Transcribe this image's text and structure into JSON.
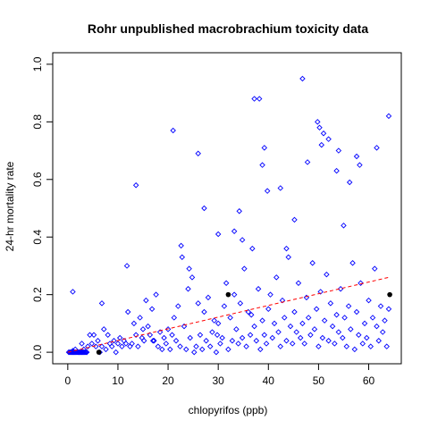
{
  "chart_data": {
    "type": "scatter",
    "title": "Rohr unpublished macrobrachium toxicity data",
    "xlabel": "chlopyrifos (ppb)",
    "ylabel": "24-hr mortality rate",
    "xlim": [
      -3,
      66.5
    ],
    "ylim": [
      -0.04,
      1.04
    ],
    "x_ticks": [
      "0",
      "10",
      "20",
      "30",
      "40",
      "50",
      "60"
    ],
    "y_ticks": [
      "0.0",
      "0.2",
      "0.4",
      "0.6",
      "0.8",
      "1.0"
    ],
    "grid": false,
    "legend": "none",
    "series": [
      {
        "marker": "open-diamond",
        "color": "#0000ff",
        "x": [
          0.2,
          0.4,
          0.6,
          0.8,
          1.0,
          1.2,
          1.4,
          1.6,
          1.8,
          2.0,
          2.2,
          2.4,
          2.6,
          2.8,
          3.0,
          3.2,
          3.4,
          3.6,
          3.8,
          1.0,
          1.5,
          2.2,
          2.8,
          3.2,
          4.0,
          4.4,
          4.8,
          5.2,
          5.6,
          6.0,
          6.4,
          6.8,
          7.2,
          7.6,
          8.0,
          8.4,
          8.8,
          9.2,
          9.6,
          10.0,
          10.4,
          10.8,
          11.2,
          11.6,
          12.0,
          12.4,
          12.8,
          13.2,
          13.6,
          14.0,
          14.4,
          14.8,
          15.2,
          15.6,
          16.0,
          16.4,
          16.8,
          17.2,
          17.6,
          18.0,
          18.4,
          18.8,
          19.2,
          19.6,
          20.0,
          20.4,
          20.8,
          21.2,
          21.6,
          22.0,
          22.4,
          22.8,
          23.2,
          23.6,
          24.0,
          24.4,
          24.8,
          25.2,
          25.6,
          26.0,
          26.4,
          26.8,
          27.2,
          27.6,
          28.0,
          28.4,
          28.8,
          29.2,
          29.6,
          30.0,
          30.4,
          30.8,
          31.2,
          31.6,
          32.0,
          32.4,
          32.8,
          33.2,
          33.6,
          34.0,
          34.4,
          34.8,
          35.2,
          35.6,
          36.0,
          36.4,
          36.8,
          37.2,
          37.6,
          38.0,
          38.4,
          38.8,
          39.2,
          39.6,
          40.0,
          40.4,
          40.8,
          41.2,
          41.6,
          42.0,
          42.4,
          42.8,
          43.2,
          43.6,
          44.0,
          44.4,
          44.8,
          45.2,
          45.6,
          46.0,
          46.4,
          46.8,
          47.2,
          47.6,
          48.0,
          48.4,
          48.8,
          49.2,
          49.6,
          50.0,
          50.4,
          50.8,
          51.2,
          51.6,
          52.0,
          52.4,
          52.8,
          53.2,
          53.6,
          54.0,
          54.4,
          54.8,
          55.2,
          55.6,
          56.0,
          56.4,
          56.8,
          57.2,
          57.6,
          58.0,
          58.4,
          58.8,
          59.2,
          59.6,
          60.0,
          60.4,
          60.8,
          61.2,
          61.6,
          62.0,
          62.4,
          62.8,
          63.2,
          63.6,
          64.0,
          11.8,
          13.6,
          21.0,
          26.0,
          37.2,
          38.2,
          46.8,
          47.8,
          49.8,
          50.6,
          54.0,
          58.2,
          61.6,
          64.0,
          39.2,
          39.8,
          42.4,
          45.2,
          52.0,
          53.6,
          55.0,
          56.2,
          57.6,
          22.6,
          24.2,
          27.2,
          30.0,
          33.2,
          34.2,
          34.8,
          38.8,
          43.6,
          1.0,
          6.8,
          15.0,
          17.0,
          29.8,
          36.6,
          50.2,
          51.0
        ],
        "y": [
          0.0,
          0.0,
          0.0,
          0.0,
          0.0,
          0.0,
          0.0,
          0.0,
          0.0,
          0.0,
          0.0,
          0.0,
          0.0,
          0.0,
          0.0,
          0.0,
          0.0,
          0.0,
          0.0,
          0.005,
          0.01,
          0.0,
          0.03,
          0.01,
          0.02,
          0.06,
          0.03,
          0.06,
          0.02,
          0.04,
          0.0,
          0.02,
          0.08,
          0.01,
          0.06,
          0.03,
          0.02,
          0.04,
          0.0,
          0.03,
          0.05,
          0.02,
          0.04,
          0.03,
          0.14,
          0.02,
          0.03,
          0.1,
          0.06,
          0.02,
          0.12,
          0.05,
          0.04,
          0.18,
          0.09,
          0.06,
          0.15,
          0.04,
          0.2,
          0.02,
          0.07,
          0.01,
          0.05,
          0.03,
          0.08,
          0.01,
          0.06,
          0.12,
          0.04,
          0.16,
          0.02,
          0.33,
          0.09,
          0.01,
          0.22,
          0.05,
          0.26,
          0.0,
          0.02,
          0.17,
          0.06,
          0.01,
          0.14,
          0.04,
          0.19,
          0.02,
          0.07,
          0.11,
          0.0,
          0.1,
          0.03,
          0.05,
          0.16,
          0.24,
          0.01,
          0.12,
          0.04,
          0.2,
          0.08,
          0.03,
          0.17,
          0.05,
          0.29,
          0.02,
          0.14,
          0.06,
          0.36,
          0.09,
          0.04,
          0.22,
          0.01,
          0.11,
          0.06,
          0.03,
          0.15,
          0.2,
          0.05,
          0.1,
          0.26,
          0.07,
          0.02,
          0.18,
          0.12,
          0.04,
          0.33,
          0.09,
          0.03,
          0.14,
          0.07,
          0.24,
          0.05,
          0.1,
          0.03,
          0.19,
          0.12,
          0.06,
          0.31,
          0.08,
          0.15,
          0.02,
          0.21,
          0.05,
          0.11,
          0.27,
          0.04,
          0.17,
          0.09,
          0.03,
          0.13,
          0.07,
          0.22,
          0.05,
          0.12,
          0.02,
          0.16,
          0.08,
          0.31,
          0.01,
          0.14,
          0.06,
          0.24,
          0.03,
          0.1,
          0.05,
          0.18,
          0.02,
          0.12,
          0.29,
          0.09,
          0.04,
          0.16,
          0.07,
          0.11,
          0.02,
          0.15,
          0.3,
          0.58,
          0.77,
          0.69,
          0.88,
          0.88,
          0.95,
          0.66,
          0.8,
          0.72,
          0.7,
          0.65,
          0.71,
          0.82,
          0.71,
          0.56,
          0.57,
          0.46,
          0.74,
          0.63,
          0.44,
          0.59,
          0.68,
          0.37,
          0.29,
          0.5,
          0.41,
          0.42,
          0.49,
          0.39,
          0.65,
          0.36,
          0.21,
          0.17,
          0.08,
          0.04,
          0.06,
          0.13,
          0.78,
          0.76
        ]
      },
      {
        "marker": "filled-circle",
        "color": "#000000",
        "x": [
          6.2,
          32.0,
          64.2
        ],
        "y": [
          0.0,
          0.2,
          0.2
        ]
      }
    ],
    "fit_line": {
      "style": "dashed",
      "color": "#ff0000",
      "x": [
        0,
        64
      ],
      "y": [
        0.0,
        0.26
      ]
    }
  }
}
